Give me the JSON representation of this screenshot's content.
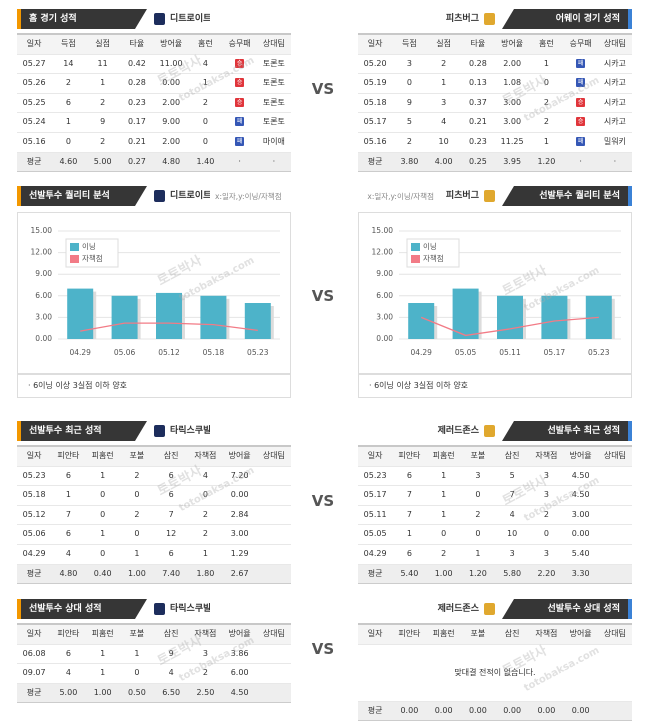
{
  "vs": "VS",
  "watermark": {
    "ko": "토토박사",
    "en": "totobaksa.com"
  },
  "home_record": {
    "title": "홈 경기 성적",
    "team": "디트로이트",
    "columns": [
      "일자",
      "득점",
      "실점",
      "타율",
      "방어율",
      "홈런",
      "승무패",
      "상대팀"
    ],
    "rows": [
      [
        "05.27",
        "14",
        "11",
        "0.42",
        "11.00",
        "4",
        "승",
        "토론토"
      ],
      [
        "05.26",
        "2",
        "1",
        "0.28",
        "0.00",
        "1",
        "승",
        "토론토"
      ],
      [
        "05.25",
        "6",
        "2",
        "0.23",
        "2.00",
        "2",
        "승",
        "토론토"
      ],
      [
        "05.24",
        "1",
        "9",
        "0.17",
        "9.00",
        "0",
        "패",
        "토론토"
      ],
      [
        "05.16",
        "0",
        "2",
        "0.21",
        "2.00",
        "0",
        "패",
        "마이애"
      ]
    ],
    "average": [
      "평균",
      "4.60",
      "5.00",
      "0.27",
      "4.80",
      "1.40",
      "·",
      "·"
    ]
  },
  "away_record": {
    "title": "어웨이 경기 성적",
    "team": "피츠버그",
    "columns": [
      "일자",
      "득점",
      "실점",
      "타율",
      "방어율",
      "홈런",
      "승무패",
      "상대팀"
    ],
    "rows": [
      [
        "05.20",
        "3",
        "2",
        "0.28",
        "2.00",
        "1",
        "패",
        "시카고"
      ],
      [
        "05.19",
        "0",
        "1",
        "0.13",
        "1.08",
        "0",
        "패",
        "시카고"
      ],
      [
        "05.18",
        "9",
        "3",
        "0.37",
        "3.00",
        "2",
        "승",
        "시카고"
      ],
      [
        "05.17",
        "5",
        "4",
        "0.21",
        "3.00",
        "2",
        "승",
        "시카고"
      ],
      [
        "05.16",
        "2",
        "10",
        "0.23",
        "11.25",
        "1",
        "패",
        "밀워키"
      ]
    ],
    "average": [
      "평균",
      "3.80",
      "4.00",
      "0.25",
      "3.95",
      "1.20",
      "·",
      "·"
    ]
  },
  "chart_data": [
    {
      "type": "combo",
      "title": "선발투수 퀄리티 분석",
      "team": "디트로이트",
      "axis_note": "x:일자,y:이닝/자책점",
      "footnote": "· 6이닝 이상 3실점 이하 양호",
      "categories": [
        "04.29",
        "05.06",
        "05.12",
        "05.18",
        "05.23"
      ],
      "series": [
        {
          "name": "이닝",
          "type": "bar",
          "color": "#4db3c9",
          "values": [
            7,
            6,
            6.4,
            6,
            5
          ]
        },
        {
          "name": "자책점",
          "type": "line",
          "color": "#f27b86",
          "values": [
            1.1,
            2.2,
            2.2,
            2,
            1.2
          ]
        }
      ],
      "ylim": [
        0,
        15
      ],
      "yticks": [
        {
          "value": 0,
          "label": "0.00"
        },
        {
          "value": 3,
          "label": "3.00"
        },
        {
          "value": 6,
          "label": "6.00"
        },
        {
          "value": 9,
          "label": "9.00"
        },
        {
          "value": 12,
          "label": "12.00"
        },
        {
          "value": 15,
          "label": "15.00"
        }
      ]
    },
    {
      "type": "combo",
      "title": "선발투수 퀄리티 분석",
      "team": "피츠버그",
      "axis_note": "x:일자,y:이닝/자책점",
      "footnote": "· 6이닝 이상 3실점 이하 양호",
      "categories": [
        "04.29",
        "05.05",
        "05.11",
        "05.17",
        "05.23"
      ],
      "series": [
        {
          "name": "이닝",
          "type": "bar",
          "color": "#4db3c9",
          "values": [
            5,
            7,
            6,
            6,
            6
          ]
        },
        {
          "name": "자책점",
          "type": "line",
          "color": "#f27b86",
          "values": [
            3,
            0.5,
            1.4,
            2.5,
            3
          ]
        }
      ],
      "ylim": [
        0,
        15
      ],
      "yticks": [
        {
          "value": 0,
          "label": "0.00"
        },
        {
          "value": 3,
          "label": "3.00"
        },
        {
          "value": 6,
          "label": "6.00"
        },
        {
          "value": 9,
          "label": "9.00"
        },
        {
          "value": 12,
          "label": "12.00"
        },
        {
          "value": 15,
          "label": "15.00"
        }
      ]
    }
  ],
  "pitcher_recent": [
    {
      "title": "선발투수 최근 성적",
      "pitcher": "타릭스쿠발",
      "columns": [
        "일자",
        "피안타",
        "피홈런",
        "포볼",
        "삼진",
        "자책점",
        "방어율",
        "상대팀"
      ],
      "rows": [
        [
          "05.23",
          "6",
          "1",
          "2",
          "6",
          "4",
          "7.20"
        ],
        [
          "05.18",
          "1",
          "0",
          "0",
          "6",
          "0",
          "0.00"
        ],
        [
          "05.12",
          "7",
          "0",
          "2",
          "7",
          "2",
          "2.84"
        ],
        [
          "05.06",
          "6",
          "1",
          "0",
          "12",
          "2",
          "3.00"
        ],
        [
          "04.29",
          "4",
          "0",
          "1",
          "6",
          "1",
          "1.29"
        ]
      ],
      "average": [
        "평균",
        "4.80",
        "0.40",
        "1.00",
        "7.40",
        "1.80",
        "2.67"
      ]
    },
    {
      "title": "선발투수 최근 성적",
      "pitcher": "제러드존스",
      "columns": [
        "일자",
        "피안타",
        "피홈런",
        "포볼",
        "삼진",
        "자책점",
        "방어율",
        "상대팀"
      ],
      "rows": [
        [
          "05.23",
          "6",
          "1",
          "3",
          "5",
          "3",
          "4.50"
        ],
        [
          "05.17",
          "7",
          "1",
          "0",
          "7",
          "3",
          "4.50"
        ],
        [
          "05.11",
          "7",
          "1",
          "2",
          "4",
          "2",
          "3.00"
        ],
        [
          "05.05",
          "1",
          "0",
          "0",
          "10",
          "0",
          "0.00"
        ],
        [
          "04.29",
          "6",
          "2",
          "1",
          "3",
          "3",
          "5.40"
        ]
      ],
      "average": [
        "평균",
        "5.40",
        "1.00",
        "1.20",
        "5.80",
        "2.20",
        "3.30"
      ]
    }
  ],
  "pitcher_vs": [
    {
      "title": "선발투수 상대 성적",
      "pitcher": "타릭스쿠발",
      "columns": [
        "일자",
        "피안타",
        "피홈런",
        "포볼",
        "삼진",
        "자책점",
        "방어율",
        "상대팀"
      ],
      "rows": [
        [
          "06.08",
          "6",
          "1",
          "1",
          "9",
          "3",
          "3.86"
        ],
        [
          "09.07",
          "4",
          "1",
          "0",
          "4",
          "2",
          "6.00"
        ]
      ],
      "average": [
        "평균",
        "5.00",
        "1.00",
        "0.50",
        "6.50",
        "2.50",
        "4.50"
      ]
    },
    {
      "title": "선발투수 상대 성적",
      "pitcher": "제러드존스",
      "columns": [
        "일자",
        "피안타",
        "피홈런",
        "포볼",
        "삼진",
        "자책점",
        "방어율",
        "상대팀"
      ],
      "message": "맞대결 전적이 없습니다.",
      "average": [
        "평균",
        "0.00",
        "0.00",
        "0.00",
        "0.00",
        "0.00",
        "0.00"
      ]
    }
  ]
}
